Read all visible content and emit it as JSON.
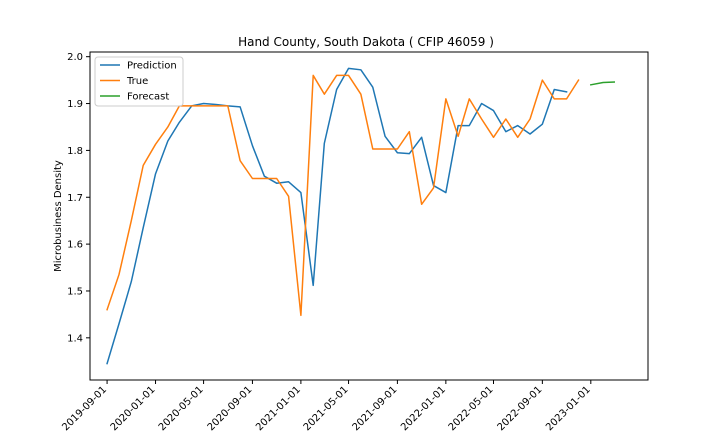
{
  "chart_data": {
    "type": "line",
    "title": "Hand County, South Dakota ( CFIP 46059 )",
    "xlabel": "",
    "ylabel": "Microbusiness Density",
    "ylim": [
      1.31,
      2.01
    ],
    "xlim": [
      "2019-07-20",
      "2023-05-25"
    ],
    "grid": false,
    "legend_position": "top-left",
    "y_ticks": [
      1.4,
      1.5,
      1.6,
      1.7,
      1.8,
      1.9,
      2.0
    ],
    "y_tick_labels": [
      "1.4",
      "1.5",
      "1.6",
      "1.7",
      "1.8",
      "1.9",
      "2.0"
    ],
    "x_ticks": [
      "2019-09-01",
      "2020-01-01",
      "2020-05-01",
      "2020-09-01",
      "2021-01-01",
      "2021-05-01",
      "2021-09-01",
      "2022-01-01",
      "2022-05-01",
      "2022-09-01",
      "2023-01-01"
    ],
    "x_tick_labels": [
      "2019-09-01",
      "2020-01-01",
      "2020-05-01",
      "2020-09-01",
      "2021-01-01",
      "2021-05-01",
      "2021-09-01",
      "2022-01-01",
      "2022-05-01",
      "2022-09-01",
      "2023-01-01"
    ],
    "series": [
      {
        "name": "Prediction",
        "color": "#1f77b4",
        "x": [
          "2019-09-01",
          "2019-10-01",
          "2019-11-01",
          "2019-12-01",
          "2020-01-01",
          "2020-02-01",
          "2020-03-01",
          "2020-04-01",
          "2020-05-01",
          "2020-06-01",
          "2020-07-01",
          "2020-08-01",
          "2020-09-01",
          "2020-10-01",
          "2020-11-01",
          "2020-12-01",
          "2021-01-01",
          "2021-02-01",
          "2021-03-01",
          "2021-04-01",
          "2021-05-01",
          "2021-06-01",
          "2021-07-01",
          "2021-08-01",
          "2021-09-01",
          "2021-10-01",
          "2021-11-01",
          "2021-12-01",
          "2022-01-01",
          "2022-02-01",
          "2022-03-01",
          "2022-04-01",
          "2022-05-01",
          "2022-06-01",
          "2022-07-01",
          "2022-08-01",
          "2022-09-01",
          "2022-10-01",
          "2022-11-01"
        ],
        "values": [
          1.345,
          1.43,
          1.52,
          1.635,
          1.75,
          1.82,
          1.86,
          1.895,
          1.9,
          1.898,
          1.895,
          1.893,
          1.81,
          1.745,
          1.73,
          1.733,
          1.71,
          1.512,
          1.815,
          1.93,
          1.975,
          1.972,
          1.935,
          1.83,
          1.795,
          1.793,
          1.828,
          1.725,
          1.71,
          1.853,
          1.853,
          1.9,
          1.885,
          1.84,
          1.853,
          1.835,
          1.856,
          1.93,
          1.925
        ]
      },
      {
        "name": "True",
        "color": "#ff7f0e",
        "x": [
          "2019-09-01",
          "2019-10-01",
          "2019-11-01",
          "2019-12-01",
          "2020-01-01",
          "2020-02-01",
          "2020-03-01",
          "2020-04-01",
          "2020-05-01",
          "2020-06-01",
          "2020-07-01",
          "2020-08-01",
          "2020-09-01",
          "2020-10-01",
          "2020-11-01",
          "2020-12-01",
          "2021-01-01",
          "2021-02-01",
          "2021-03-01",
          "2021-04-01",
          "2021-05-01",
          "2021-06-01",
          "2021-07-01",
          "2021-08-01",
          "2021-09-01",
          "2021-10-01",
          "2021-11-01",
          "2021-12-01",
          "2022-01-01",
          "2022-02-01",
          "2022-03-01",
          "2022-04-01",
          "2022-05-01",
          "2022-06-01",
          "2022-07-01",
          "2022-08-01",
          "2022-09-01",
          "2022-10-01",
          "2022-11-01",
          "2022-12-01"
        ],
        "values": [
          1.46,
          1.535,
          1.65,
          1.768,
          1.813,
          1.85,
          1.895,
          1.895,
          1.895,
          1.895,
          1.895,
          1.778,
          1.74,
          1.74,
          1.74,
          1.702,
          1.448,
          1.96,
          1.92,
          1.96,
          1.96,
          1.92,
          1.803,
          1.803,
          1.803,
          1.84,
          1.685,
          1.72,
          1.91,
          1.83,
          1.91,
          1.867,
          1.828,
          1.867,
          1.828,
          1.867,
          1.95,
          1.91,
          1.91,
          1.95
        ]
      },
      {
        "name": "Forecast",
        "color": "#2ca02c",
        "x": [
          "2023-01-01",
          "2023-02-01",
          "2023-03-01"
        ],
        "values": [
          1.94,
          1.945,
          1.946
        ]
      }
    ]
  }
}
